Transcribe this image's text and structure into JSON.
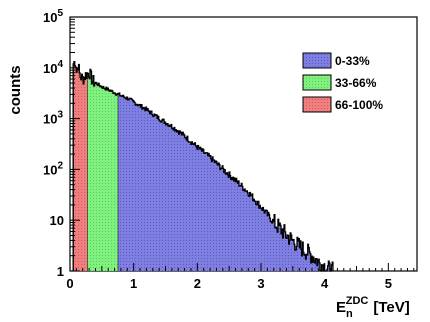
{
  "chart_data": {
    "type": "area",
    "ylabel": "counts",
    "xlabel": {
      "main": "E",
      "sub": "n",
      "sup": "ZDC",
      "unit": "[TeV]"
    },
    "x_range": [
      0,
      5.45
    ],
    "y_range": [
      1,
      100000
    ],
    "y_scale": "log",
    "grid": false,
    "legend_position": "top-right",
    "x_ticks": [
      "0",
      "1",
      "2",
      "3",
      "4",
      "5"
    ],
    "y_ticks": [
      "1",
      "10",
      "10^2",
      "10^3",
      "10^4",
      "10^5"
    ],
    "colors": {
      "0-33%": "#7f7fe0",
      "33-66%": "#80f080",
      "66-100%": "#f07f7f",
      "outline": "#000000"
    },
    "series": [
      {
        "name": "0-33%",
        "color": "#7f7fe0",
        "x_range": [
          0.75,
          4.1
        ]
      },
      {
        "name": "33-66%",
        "color": "#80f080",
        "x_range": [
          0.27,
          0.75
        ]
      },
      {
        "name": "66-100%",
        "color": "#f07f7f",
        "x_range": [
          0.05,
          0.27
        ]
      }
    ],
    "histogram": {
      "x": [
        0.05,
        0.08,
        0.1,
        0.12,
        0.15,
        0.2,
        0.25,
        0.3,
        0.35,
        0.4,
        0.5,
        0.6,
        0.75,
        0.9,
        1.0,
        1.2,
        1.4,
        1.6,
        1.8,
        2.0,
        2.2,
        2.4,
        2.6,
        2.8,
        3.0,
        3.2,
        3.4,
        3.6,
        3.8,
        3.9,
        4.0,
        4.1,
        4.3,
        4.5
      ],
      "y": [
        12000,
        14000,
        8000,
        12000,
        7000,
        6000,
        7500,
        8000,
        5500,
        5000,
        4200,
        3700,
        3000,
        2500,
        2100,
        1500,
        1000,
        700,
        450,
        270,
        170,
        100,
        60,
        35,
        18,
        9,
        5,
        3,
        2,
        1.5,
        1.2,
        1.0,
        1.0,
        1.0
      ]
    }
  }
}
